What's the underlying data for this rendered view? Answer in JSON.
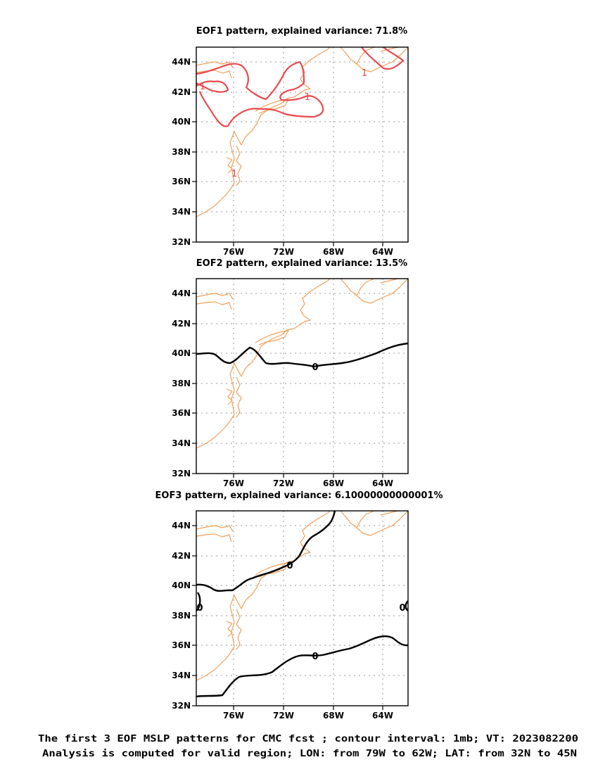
{
  "figure": {
    "panels": [
      {
        "title": "EOF1 pattern, explained variance: 71.8%",
        "contour_color": "#e84a4f",
        "contour_labels": [
          "1",
          "1",
          "1",
          "1"
        ]
      },
      {
        "title": "EOF2 pattern, explained variance: 13.5%",
        "contour_color": "#000000",
        "contour_labels": [
          "0"
        ]
      },
      {
        "title": "EOF3 pattern, explained variance: 6.10000000000001%",
        "contour_color": "#000000",
        "contour_labels": [
          "0",
          "0",
          "0",
          "0"
        ]
      }
    ],
    "lat_ticks": [
      "44N",
      "42N",
      "40N",
      "38N",
      "36N",
      "34N",
      "32N"
    ],
    "lon_ticks": [
      "76W",
      "72W",
      "68W",
      "64W"
    ],
    "coastline_color": "#f0a05a",
    "grid_color": "#9a9a9a",
    "footer_line1": "The first 3 EOF MSLP patterns for CMC fcst ; contour interval: 1mb; VT: 2023082200",
    "footer_line2": "Analysis is computed for valid region; LON: from 79W to 62W; LAT: from 32N to 45N"
  }
}
